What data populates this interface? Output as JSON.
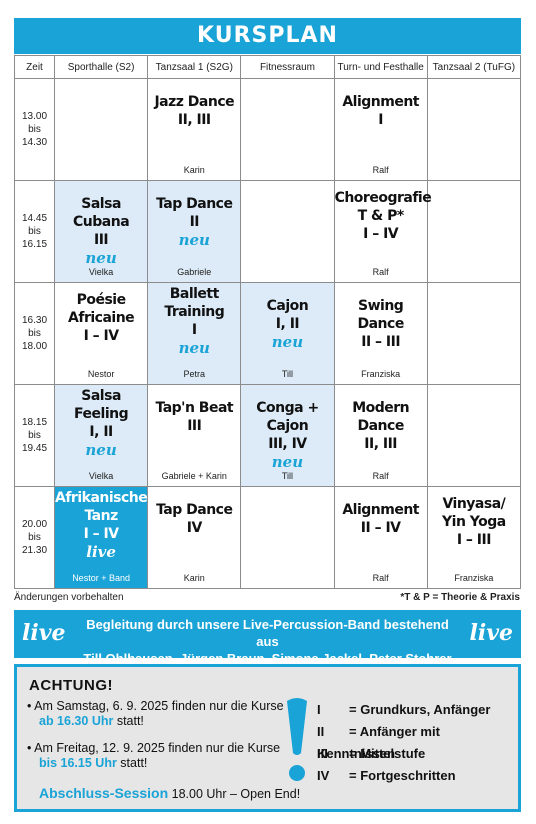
{
  "title": "KURSPLAN",
  "columns": [
    "Zeit",
    "Sporthalle (S2)",
    "Tanzsaal 1 (S2G)",
    "Fitnessraum",
    "Turn- und Festhalle",
    "Tanzsaal 2 (TuFG)"
  ],
  "rows": [
    {
      "time": [
        "13.00",
        "bis",
        "14.30"
      ],
      "cells": [
        {
          "course": "",
          "teacher": "",
          "neu": false,
          "style": ""
        },
        {
          "course": "Jazz Dance\nII, III",
          "teacher": "Karin",
          "neu": false,
          "style": ""
        },
        {
          "course": "",
          "teacher": "",
          "neu": false,
          "style": ""
        },
        {
          "course": "Alignment\nI",
          "teacher": "Ralf",
          "neu": false,
          "style": ""
        },
        {
          "course": "",
          "teacher": "",
          "neu": false,
          "style": ""
        }
      ]
    },
    {
      "time": [
        "14.45",
        "bis",
        "16.15"
      ],
      "cells": [
        {
          "course": "Salsa Cubana\nIII",
          "teacher": "Vielka",
          "neu": true,
          "style": "light"
        },
        {
          "course": "Tap Dance\nII",
          "teacher": "Gabriele",
          "neu": true,
          "style": "light"
        },
        {
          "course": "",
          "teacher": "",
          "neu": false,
          "style": ""
        },
        {
          "course": "Choreografie\nT & P*\nI – IV",
          "teacher": "Ralf",
          "neu": false,
          "style": "",
          "tight": "tight"
        },
        {
          "course": "",
          "teacher": "",
          "neu": false,
          "style": ""
        }
      ]
    },
    {
      "time": [
        "16.30",
        "bis",
        "18.00"
      ],
      "cells": [
        {
          "course": "Poésie\nAfricaine\nI – IV",
          "teacher": "Nestor",
          "neu": false,
          "style": "",
          "tight": "tight"
        },
        {
          "course": "Ballett\nTraining\nI",
          "teacher": "Petra",
          "neu": true,
          "style": "light",
          "tight": "veryTight"
        },
        {
          "course": "Cajon\nI, II",
          "teacher": "Till",
          "neu": true,
          "style": "light"
        },
        {
          "course": "Swing Dance\nII – III",
          "teacher": "Franziska",
          "neu": false,
          "style": ""
        },
        {
          "course": "",
          "teacher": "",
          "neu": false,
          "style": ""
        }
      ]
    },
    {
      "time": [
        "18.15",
        "bis",
        "19.45"
      ],
      "cells": [
        {
          "course": "Salsa\nFeeling\nI, II",
          "teacher": "Vielka",
          "neu": true,
          "style": "light",
          "tight": "veryTight"
        },
        {
          "course": "Tap'n Beat\nIII",
          "teacher": "Gabriele + Karin",
          "neu": false,
          "style": ""
        },
        {
          "course": "Conga + Cajon\nIII, IV",
          "teacher": "Till",
          "neu": true,
          "style": "light"
        },
        {
          "course": "Modern Dance\nII, III",
          "teacher": "Ralf",
          "neu": false,
          "style": ""
        },
        {
          "course": "",
          "teacher": "",
          "neu": false,
          "style": ""
        }
      ]
    },
    {
      "time": [
        "20.00",
        "bis",
        "21.30"
      ],
      "cells": [
        {
          "course": "Afrikanischer\nTanz\nI – IV",
          "teacher": "Nestor + Band",
          "neu": false,
          "live": true,
          "style": "dark",
          "tight": "veryTight"
        },
        {
          "course": "Tap Dance\nIV",
          "teacher": "Karin",
          "neu": false,
          "style": ""
        },
        {
          "course": "",
          "teacher": "",
          "neu": false,
          "style": ""
        },
        {
          "course": "Alignment\nII – IV",
          "teacher": "Ralf",
          "neu": false,
          "style": ""
        },
        {
          "course": "Vinyasa/\nYin Yoga\nI – III",
          "teacher": "Franziska",
          "neu": false,
          "style": "",
          "tight": "tight"
        }
      ]
    }
  ],
  "badges": {
    "neu": "neu",
    "live": "live"
  },
  "notes": {
    "changes": "Änderungen vorbehalten",
    "tp": "*T & P = Theorie & Praxis"
  },
  "band": {
    "live": "live",
    "line1": "Begleitung durch unsere Live-Percussion-Band bestehend aus",
    "line2": "Till Ohlhausen, Jürgen Braun, Simone Jackel, Peter Stohrer"
  },
  "attention": {
    "heading": "ACHTUNG!",
    "item1_line1": "• Am Samstag, 6. 9. 2025 finden nur die Kurse",
    "item1_hl": "ab 16.30 Uhr",
    "item1_tail": " statt!",
    "item2_line1": "• Am Freitag, 12. 9. 2025 finden nur die Kurse",
    "item2_hl": "bis 16.15 Uhr",
    "item2_tail": " statt!",
    "session_hl": "Abschluss-Session",
    "session_tail": " 18.00 Uhr  –  Open End!",
    "legend": [
      {
        "num": "I",
        "text": "= Grundkurs, Anfänger"
      },
      {
        "num": "II",
        "text": "= Anfänger mit Kenntnissen"
      },
      {
        "num": "III",
        "text": "= Mittelstufe"
      },
      {
        "num": "IV",
        "text": "= Fortgeschritten"
      }
    ]
  },
  "colors": {
    "accent": "#1aa3d6",
    "light_cell": "#dcebf7",
    "box_bg": "#e6e6e6"
  }
}
